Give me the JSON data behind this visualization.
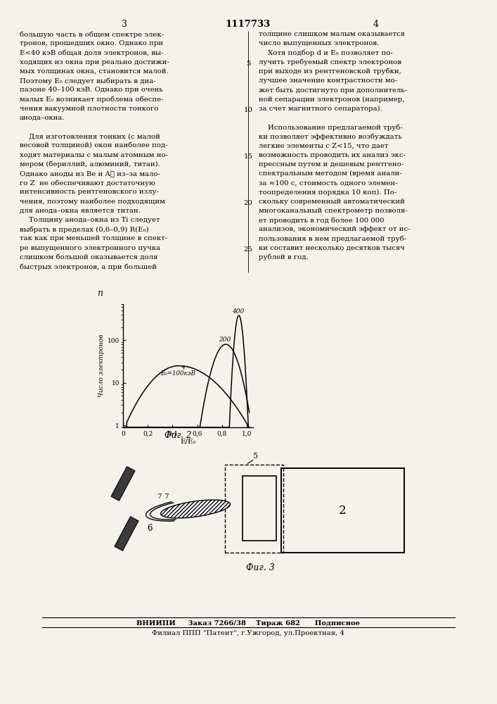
{
  "page_width": 7.07,
  "page_height": 10.0,
  "bg_color": "#f5f2ec",
  "text_left": [
    "большую часть в общем спектре элек-",
    "тронов, прошедших окно. Однако при",
    "Е<40 кэВ общая доля электронов, вы-",
    "ходящих из окна при реально достижи-",
    "мых толщинах окна, становится малой.",
    "Поэтому Е₀ следует выбирать в диа-",
    "пазоне 40–100 кэВ. Однако при очень",
    "малых Е₀ возникает проблема обеспе-",
    "чения вакуумной плотности тонкого",
    "анода–окна.",
    "",
    "    Для изготовления тонких (с малой",
    "весовой толщиной) окон наиболее под-",
    "ходят материалы с малым атомным но-",
    "мером (бериллий, алюминий, титан).",
    "Однако аноды из Be и Aℓ из–за мало-",
    "го Z  не обеспечивают достаточную",
    "интенсивность рентгеновского излу-",
    "чения, поэтому наиболее подходящим",
    "для анода–окна является титан.",
    "    Толщину анода–окна из Ti следует",
    "выбрать в пределах (0,6–0,9) R(E₀)",
    "так как при меньшей толщине в спект-",
    "ре выпущенного электронного пучка",
    "слишком большой оказывается доля",
    "быстрых электронов, а при большей"
  ],
  "text_right": [
    "толщине слишком малым оказывается",
    "число выпущенных электронов.",
    "    Хотя подбор d и E₀ позволяет по-",
    "лучить требуемый спектр электронов",
    "при выходе из рентгеновской трубки,",
    "лучшее значение контрастности мо-",
    "жет быть достигнуто при дополнитель-",
    "ной сепарации электронов (например,",
    "за счет магнитного сепаратора).",
    "",
    "    Использование предлагаемой труб-",
    "ки позволяет эффективно возбуждать",
    "легкие элементы с Z<15, что дает",
    "возможность проводить их анализ экс-",
    "прессным путем и дешевым рентгено-",
    "спектральным методом (время анали-",
    "за ≈100 с, стоимость одного элемен-",
    "тоопределения порядка 10 коп). По-",
    "скольку современный автоматический",
    "многоканальный спектрометр позволя-",
    "ет проводить в год более 100 000",
    "анализов, экономический эффект от ис-",
    "пользования в нем предлагаемой труб-",
    "ки составит несколько десятков тысяч",
    "рублей в год."
  ],
  "line_num_indices": [
    3,
    8,
    13,
    18,
    23
  ],
  "line_num_values": [
    5,
    10,
    15,
    20,
    25
  ],
  "fig2_caption": "Фиг. 2",
  "fig3_caption": "Фиг. 3",
  "footer_line1": "ВНИИПИ     Заказ 7266/38    Тираж 682      Подписное",
  "footer_line2": "Филиал ППП \"Патент\", г.Ужгород, ул.Проектная, 4"
}
